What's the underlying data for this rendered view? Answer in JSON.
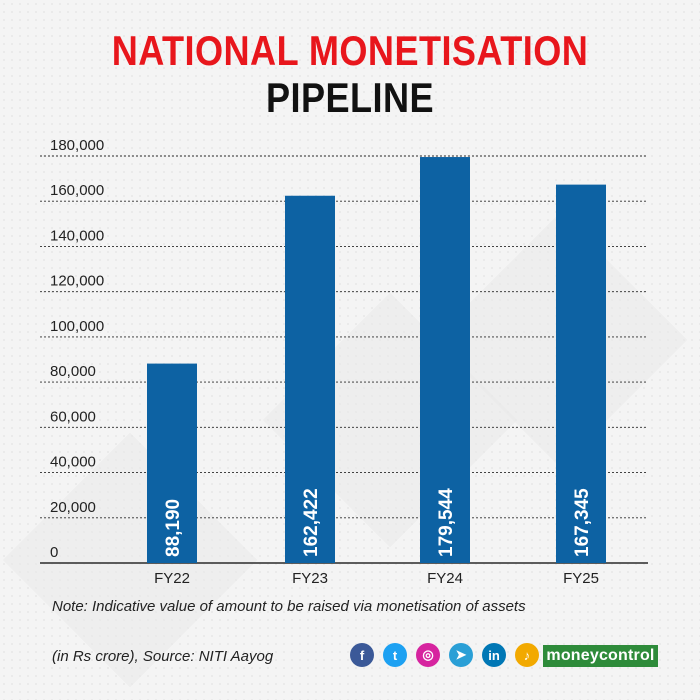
{
  "title": {
    "line1": "NATIONAL MONETISATION",
    "line2": "PIPELINE"
  },
  "note": "Note: Indicative value of amount to be raised via monetisation of assets",
  "source": "(in Rs crore), Source: NITI Aayog",
  "brand": "moneycontrol",
  "social": [
    {
      "name": "facebook-icon",
      "glyph": "f",
      "color": "#3b5998"
    },
    {
      "name": "twitter-icon",
      "glyph": "t",
      "color": "#1da1f2"
    },
    {
      "name": "instagram-icon",
      "glyph": "◎",
      "color": "#d6249f"
    },
    {
      "name": "telegram-icon",
      "glyph": "➤",
      "color": "#2a9fd6"
    },
    {
      "name": "linkedin-icon",
      "glyph": "in",
      "color": "#0077b5"
    },
    {
      "name": "podcast-icon",
      "glyph": "♪",
      "color": "#f2a900"
    }
  ],
  "colors": {
    "bar": "#0d62a3",
    "title_red": "#e8161c",
    "grid": "#222222"
  },
  "chart_data": {
    "type": "bar",
    "title": "NATIONAL MONETISATION PIPELINE",
    "categories": [
      "FY22",
      "FY23",
      "FY24",
      "FY25"
    ],
    "values": [
      88190,
      162422,
      179544,
      167345
    ],
    "labels": [
      "88,190",
      "162,422",
      "179,544",
      "167,345"
    ],
    "yticks": [
      0,
      20000,
      40000,
      60000,
      80000,
      100000,
      120000,
      140000,
      160000,
      180000
    ],
    "ytick_labels": [
      "0",
      "20,000",
      "40,000",
      "60,000",
      "80,000",
      "100,000",
      "120,000",
      "140,000",
      "160,000",
      "180,000"
    ],
    "ylim": [
      0,
      180000
    ],
    "xlabel": "",
    "ylabel": "",
    "grid": true,
    "legend": "none"
  }
}
